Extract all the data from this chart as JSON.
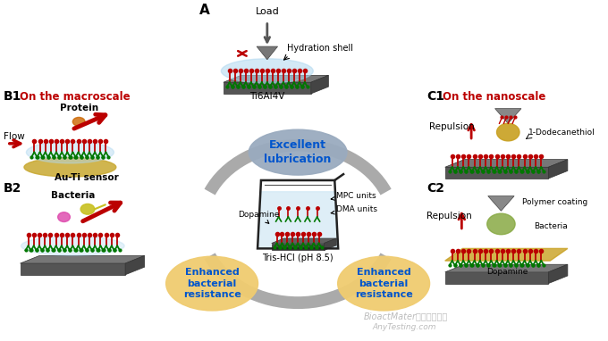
{
  "bg_color": "#ffffff",
  "panel_A_label": "A",
  "panel_B1_label": "B1",
  "panel_B2_label": "B2",
  "panel_C1_label": "C1",
  "panel_C2_label": "C2",
  "macroscale_text": "On the macroscale",
  "nanoscale_text": "On the nanoscale",
  "excellent_lubrication": "Excellent\nlubrication",
  "enhanced_bacterial_1": "Enhanced\nbacterial\nresistance",
  "enhanced_bacterial_2": "Enhanced\nbacterial\nresistance",
  "ti6al4v_label": "Ti6Al4V",
  "load_label": "Load",
  "hydration_shell_label": "Hydration shell",
  "dopamine_label": "Dopamine",
  "mpc_units_label": "MPC units",
  "dma_units_label": "DMA units",
  "tris_hcl_label": "Tris-HCl (pH 8.5)",
  "protein_label": "Protein",
  "flow_label": "Flow",
  "au_ti_label": "Au-Ti sensor",
  "bacteria_label_b2": "Bacteria",
  "repulsion_label_c1": "Repulsion",
  "repulsion_label_c2": "Repulsion",
  "dodecanethiol_label": "1-Dodecanethiol",
  "polymer_coating_label": "Polymer coating",
  "bacteria_label_c2": "Bacteria",
  "dopamine_label_c2": "Dopamine",
  "red_color": "#bb0000",
  "blue_color": "#0055cc",
  "green_color": "#007700",
  "gray_color": "#888888",
  "dark_gray": "#555555",
  "light_blue": "#b0d8f0",
  "gold_color": "#c8a020",
  "tan_color": "#e8c860",
  "arc_color": "#aaaaaa",
  "lub_oval_color": "#9aabbf",
  "enh_oval_color": "#f0cc70",
  "watermark": "BioactMater生物活性材料",
  "watermark2": "AnyTesting.com"
}
